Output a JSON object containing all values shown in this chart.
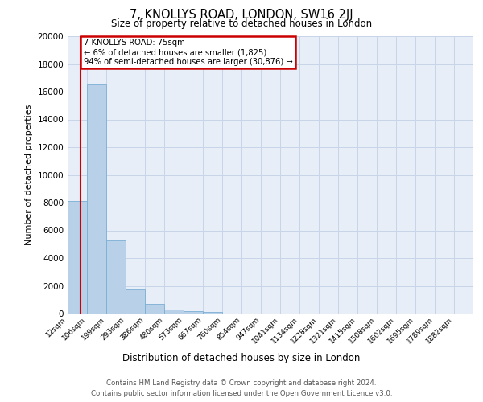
{
  "title": "7, KNOLLYS ROAD, LONDON, SW16 2JJ",
  "subtitle": "Size of property relative to detached houses in London",
  "xlabel": "Distribution of detached houses by size in London",
  "ylabel": "Number of detached properties",
  "bin_labels": [
    "12sqm",
    "106sqm",
    "199sqm",
    "293sqm",
    "386sqm",
    "480sqm",
    "573sqm",
    "667sqm",
    "760sqm",
    "854sqm",
    "947sqm",
    "1041sqm",
    "1134sqm",
    "1228sqm",
    "1321sqm",
    "1415sqm",
    "1508sqm",
    "1602sqm",
    "1695sqm",
    "1789sqm",
    "1882sqm"
  ],
  "bar_values": [
    8100,
    16500,
    5250,
    1750,
    700,
    290,
    200,
    120,
    0,
    0,
    0,
    0,
    0,
    0,
    0,
    0,
    0,
    0,
    0,
    0
  ],
  "bar_color": "#b8d0e8",
  "bar_edge_color": "#7aafd4",
  "grid_color": "#c8d4e8",
  "background_color": "#e8eef8",
  "property_line_color": "#cc0000",
  "annotation_title": "7 KNOLLYS ROAD: 75sqm",
  "annotation_line1": "← 6% of detached houses are smaller (1,825)",
  "annotation_line2": "94% of semi-detached houses are larger (30,876) →",
  "annotation_box_color": "#cc0000",
  "ylim": [
    0,
    20000
  ],
  "yticks": [
    0,
    2000,
    4000,
    6000,
    8000,
    10000,
    12000,
    14000,
    16000,
    18000,
    20000
  ],
  "footer_line1": "Contains HM Land Registry data © Crown copyright and database right 2024.",
  "footer_line2": "Contains public sector information licensed under the Open Government Licence v3.0.",
  "fig_width": 6.0,
  "fig_height": 5.0,
  "dpi": 100
}
